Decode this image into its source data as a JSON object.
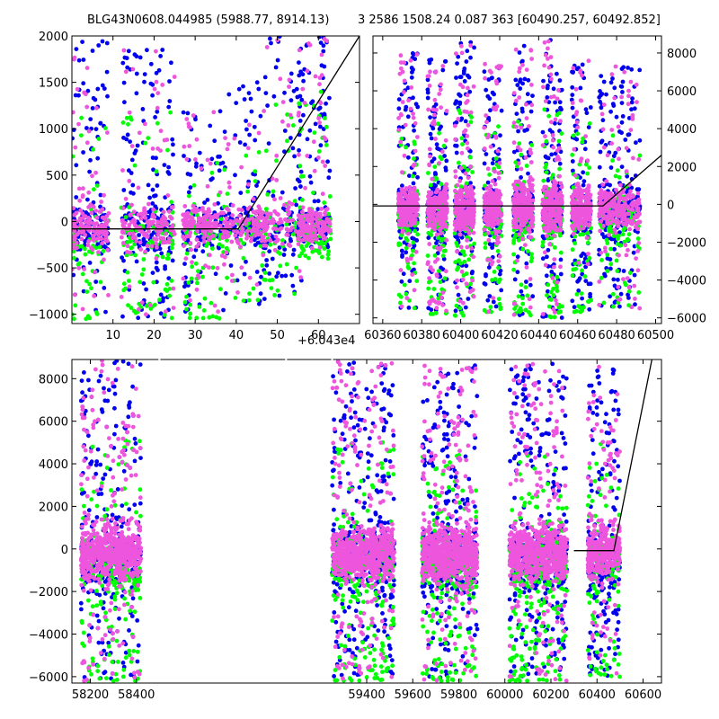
{
  "title_left": "BLG43N0608.044985 (5988.77, 8914.13)",
  "title_right": "3 2586 1508.24 0.087 363 [60490.257, 60492.852]",
  "colors": {
    "blue": "#0000ee",
    "green": "#00ff00",
    "magenta": "#ee55dd",
    "line": "#000000"
  },
  "chart_data": [
    {
      "type": "scatter",
      "panel": "top-left",
      "xlim": [
        0,
        70
      ],
      "ylim": [
        -1100,
        2000
      ],
      "xticks": [
        10,
        20,
        30,
        40,
        50,
        60
      ],
      "xtick_labels": [
        "10",
        "20",
        "30",
        "40",
        "50",
        "60"
      ],
      "yticks": [
        -1000,
        -500,
        0,
        500,
        1000,
        1500,
        2000
      ],
      "ytick_labels": [
        "−1000",
        "−500",
        "0",
        "500",
        "1000",
        "1500",
        "2000"
      ],
      "x_offset_label": "+6.043e4",
      "model_line": {
        "x": [
          0,
          40.5,
          70
        ],
        "y": [
          -80,
          -80,
          2000
        ]
      },
      "clusters": [
        {
          "x": [
            0,
            9
          ],
          "y": [
            -1050,
            1950
          ],
          "n_blue": 150,
          "n_green": 60,
          "n_magenta": 150
        },
        {
          "x": [
            12,
            25
          ],
          "y": [
            -1050,
            1950
          ],
          "n_blue": 200,
          "n_green": 110,
          "n_magenta": 150
        },
        {
          "x": [
            27,
            38
          ],
          "y": [
            -1050,
            1200
          ],
          "n_blue": 120,
          "n_green": 90,
          "n_magenta": 170
        },
        {
          "x": [
            38,
            47
          ],
          "y": [
            -900,
            1600
          ],
          "n_blue": 110,
          "n_green": 40,
          "n_magenta": 110
        },
        {
          "x": [
            47,
            56
          ],
          "y": [
            -800,
            2000
          ],
          "n_blue": 110,
          "n_green": 50,
          "n_magenta": 80
        },
        {
          "x": [
            55,
            63
          ],
          "y": [
            -400,
            2000
          ],
          "n_blue": 120,
          "n_green": 80,
          "n_magenta": 160
        }
      ]
    },
    {
      "type": "scatter",
      "panel": "top-right",
      "xlim": [
        60355,
        60503
      ],
      "ylim": [
        -6300,
        8900
      ],
      "xticks": [
        60360,
        60380,
        60400,
        60420,
        60440,
        60460,
        60480,
        60500
      ],
      "xtick_labels": [
        "60360",
        "60380",
        "60400",
        "60420",
        "60440",
        "60460",
        "60480",
        "60500"
      ],
      "yticks": [
        -6000,
        -4000,
        -2000,
        0,
        2000,
        4000,
        6000,
        8000
      ],
      "ytick_labels": [
        "−6000",
        "−4000",
        "−2000",
        "0",
        "2000",
        "4000",
        "6000",
        "8000"
      ],
      "model_line": {
        "x": [
          60355,
          60473,
          60503
        ],
        "y": [
          -80,
          -80,
          2600
        ]
      },
      "clusters": [
        {
          "x": [
            60368,
            60378
          ],
          "y": [
            -5500,
            8000
          ],
          "n_blue": 170,
          "n_green": 90,
          "n_magenta": 230
        },
        {
          "x": [
            60383,
            60393
          ],
          "y": [
            -5800,
            7900
          ],
          "n_blue": 170,
          "n_green": 90,
          "n_magenta": 230
        },
        {
          "x": [
            60397,
            60407
          ],
          "y": [
            -5900,
            8600
          ],
          "n_blue": 170,
          "n_green": 90,
          "n_magenta": 250
        },
        {
          "x": [
            60412,
            60421
          ],
          "y": [
            -5700,
            7500
          ],
          "n_blue": 150,
          "n_green": 80,
          "n_magenta": 200
        },
        {
          "x": [
            60427,
            60437
          ],
          "y": [
            -5900,
            8500
          ],
          "n_blue": 170,
          "n_green": 90,
          "n_magenta": 230
        },
        {
          "x": [
            60442,
            60452
          ],
          "y": [
            -6000,
            8700
          ],
          "n_blue": 170,
          "n_green": 90,
          "n_magenta": 230
        },
        {
          "x": [
            60457,
            60467
          ],
          "y": [
            -5700,
            7900
          ],
          "n_blue": 150,
          "n_green": 80,
          "n_magenta": 200
        },
        {
          "x": [
            60471,
            60492
          ],
          "y": [
            -5500,
            7300
          ],
          "n_blue": 250,
          "n_green": 100,
          "n_magenta": 260
        }
      ]
    },
    {
      "type": "scatter",
      "panel": "bottom",
      "xlim": [
        58120,
        60680
      ],
      "ylim": [
        -6300,
        8900
      ],
      "xticks": [
        58200,
        58400,
        59400,
        59600,
        59800,
        60000,
        60200,
        60400,
        60600
      ],
      "xtick_labels": [
        "58200",
        "58400",
        "59400",
        "59600",
        "59800",
        "60000",
        "60200",
        "60400",
        "60600"
      ],
      "yticks": [
        -6000,
        -4000,
        -2000,
        0,
        2000,
        4000,
        6000,
        8000
      ],
      "ytick_labels": [
        "−6000",
        "−4000",
        "−2000",
        "0",
        "2000",
        "4000",
        "6000",
        "8000"
      ],
      "gap_marks": [
        58500,
        59050,
        59250
      ],
      "model_line": {
        "x": [
          60300,
          60473,
          60640
        ],
        "y": [
          -80,
          -80,
          9000
        ]
      },
      "clusters": [
        {
          "x": [
            58160,
            58420
          ],
          "y": [
            -6200,
            8900
          ],
          "n_blue": 380,
          "n_green": 220,
          "n_magenta": 700
        },
        {
          "x": [
            59250,
            59520
          ],
          "y": [
            -6200,
            8800
          ],
          "n_blue": 420,
          "n_green": 260,
          "n_magenta": 720
        },
        {
          "x": [
            59640,
            59880
          ],
          "y": [
            -6200,
            8700
          ],
          "n_blue": 400,
          "n_green": 230,
          "n_magenta": 700
        },
        {
          "x": [
            60020,
            60270
          ],
          "y": [
            -6200,
            8700
          ],
          "n_blue": 420,
          "n_green": 260,
          "n_magenta": 700
        },
        {
          "x": [
            60360,
            60500
          ],
          "y": [
            -6000,
            8600
          ],
          "n_blue": 260,
          "n_green": 110,
          "n_magenta": 360
        }
      ]
    }
  ]
}
